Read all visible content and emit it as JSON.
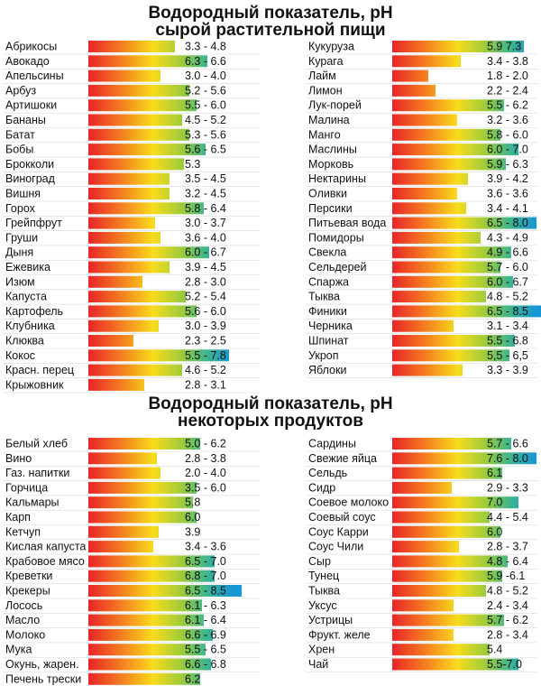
{
  "title1": [
    "Водородный показатель, pH",
    "сырой растительной пищи"
  ],
  "title2": [
    "Водородный показатель, pH",
    "некоторых продуктов"
  ],
  "chart_data": [
    {
      "type": "bar",
      "title": "Водородный показатель, pH сырой растительной пищи",
      "xlim": [
        1,
        8
      ],
      "columns": [
        [
          {
            "label": "Абрикосы",
            "range": [
              3.3,
              4.8
            ],
            "text": "3.3 - 4.8"
          },
          {
            "label": "Авокадо",
            "range": [
              6.3,
              6.6
            ],
            "text": "6.3 - 6.6"
          },
          {
            "label": "Апельсины",
            "range": [
              3.0,
              4.0
            ],
            "text": "3.0 - 4.0"
          },
          {
            "label": "Арбуз",
            "range": [
              5.2,
              5.6
            ],
            "text": "5.2 - 5.6"
          },
          {
            "label": "Артишоки",
            "range": [
              5.5,
              6.0
            ],
            "text": "5.5 - 6.0"
          },
          {
            "label": "Бананы",
            "range": [
              4.5,
              5.2
            ],
            "text": "4.5 - 5.2"
          },
          {
            "label": "Батат",
            "range": [
              5.3,
              5.6
            ],
            "text": "5.3 - 5.6"
          },
          {
            "label": "Бобы",
            "range": [
              5.6,
              6.5
            ],
            "text": "5.6 - 6.5"
          },
          {
            "label": "Брокколи",
            "range": [
              5.3,
              5.3
            ],
            "text": "5.3"
          },
          {
            "label": "Виноград",
            "range": [
              3.5,
              4.5
            ],
            "text": "3.5 - 4.5"
          },
          {
            "label": "Вишня",
            "range": [
              3.2,
              4.5
            ],
            "text": "3.2 - 4.5"
          },
          {
            "label": "Горох",
            "range": [
              5.8,
              6.4
            ],
            "text": "5.8 - 6.4"
          },
          {
            "label": "Грейпфрут",
            "range": [
              3.0,
              3.7
            ],
            "text": "3.0 - 3.7"
          },
          {
            "label": "Груши",
            "range": [
              3.6,
              4.0
            ],
            "text": "3.6 - 4.0"
          },
          {
            "label": "Дыня",
            "range": [
              6.0,
              6.7
            ],
            "text": "6.0 - 6.7"
          },
          {
            "label": "Ежевика",
            "range": [
              3.9,
              4.5
            ],
            "text": "3.9 - 4.5"
          },
          {
            "label": "Изюм",
            "range": [
              2.8,
              3.0
            ],
            "text": "2.8 - 3.0"
          },
          {
            "label": "Капуста",
            "range": [
              5.2,
              5.4
            ],
            "text": "5.2 - 5.4"
          },
          {
            "label": "Картофель",
            "range": [
              5.6,
              6.0
            ],
            "text": "5.6 - 6.0"
          },
          {
            "label": "Клубника",
            "range": [
              3.0,
              3.9
            ],
            "text": "3.0 - 3.9"
          },
          {
            "label": "Клюква",
            "range": [
              2.3,
              2.5
            ],
            "text": "2.3 - 2.5"
          },
          {
            "label": "Кокос",
            "range": [
              5.5,
              7.8
            ],
            "text": "5.5 - 7.8"
          },
          {
            "label": "Красн. перец",
            "range": [
              4.6,
              5.2
            ],
            "text": "4.6 - 5.2"
          },
          {
            "label": "Крыжовник",
            "range": [
              2.8,
              3.1
            ],
            "text": "2.8 - 3.1"
          }
        ],
        [
          {
            "label": "Кукуруза",
            "range": [
              5.9,
              7.3
            ],
            "text": "5.9   7.3"
          },
          {
            "label": "Курага",
            "range": [
              3.4,
              3.8
            ],
            "text": "3.4 - 3.8"
          },
          {
            "label": "Лайм",
            "range": [
              1.8,
              2.0
            ],
            "text": "1.8 - 2.0"
          },
          {
            "label": "Лимон",
            "range": [
              2.2,
              2.4
            ],
            "text": "2.2 - 2.4"
          },
          {
            "label": "Лук-порей",
            "range": [
              5.5,
              6.2
            ],
            "text": "5.5 - 6.2"
          },
          {
            "label": "Малина",
            "range": [
              3.2,
              3.6
            ],
            "text": "3.2 - 3.6"
          },
          {
            "label": "Манго",
            "range": [
              5.8,
              6.0
            ],
            "text": "5.8 - 6.0"
          },
          {
            "label": "Маслины",
            "range": [
              6.0,
              7.0
            ],
            "text": "6.0 - 7.0"
          },
          {
            "label": "Морковь",
            "range": [
              5.9,
              6.3
            ],
            "text": "5.9 - 6.3"
          },
          {
            "label": "Нектарины",
            "range": [
              3.9,
              4.2
            ],
            "text": "3.9 - 4.2"
          },
          {
            "label": "Оливки",
            "range": [
              3.6,
              3.6
            ],
            "text": "3.6 - 3.6"
          },
          {
            "label": "Персики",
            "range": [
              3.4,
              4.1
            ],
            "text": "3.4 - 4.1"
          },
          {
            "label": "Питьевая вода",
            "range": [
              6.5,
              8.0
            ],
            "text": "6.5 - 8.0"
          },
          {
            "label": "Помидоры",
            "range": [
              4.3,
              4.9
            ],
            "text": "4.3 - 4.9"
          },
          {
            "label": "Свекла",
            "range": [
              4.9,
              6.6
            ],
            "text": "4.9 - 6.6"
          },
          {
            "label": "Сельдерей",
            "range": [
              5.7,
              6.0
            ],
            "text": "5.7 - 6.0"
          },
          {
            "label": "Спаржа",
            "range": [
              6.0,
              6.7
            ],
            "text": "6.0 - 6.7"
          },
          {
            "label": "Тыква",
            "range": [
              4.8,
              5.2
            ],
            "text": "4.8 - 5.2"
          },
          {
            "label": "Финики",
            "range": [
              6.5,
              8.5
            ],
            "text": "6.5 - 8.5"
          },
          {
            "label": "Черника",
            "range": [
              3.1,
              3.4
            ],
            "text": "3.1 - 3.4"
          },
          {
            "label": "Шпинат",
            "range": [
              5.5,
              6.8
            ],
            "text": "5.5 - 6.8"
          },
          {
            "label": "Укроп",
            "range": [
              5.5,
              6.5
            ],
            "text": "5,5 - 6,5"
          },
          {
            "label": "Яблоки",
            "range": [
              3.3,
              3.9
            ],
            "text": "3.3 - 3.9"
          }
        ]
      ]
    },
    {
      "type": "bar",
      "title": "Водородный показатель, pH некоторых продуктов",
      "xlim": [
        1,
        8
      ],
      "columns": [
        [
          {
            "label": "Белый хлеб",
            "range": [
              5.0,
              6.2
            ],
            "text": "5.0 - 6.2"
          },
          {
            "label": "Вино",
            "range": [
              2.8,
              3.8
            ],
            "text": "2.8 - 3.8"
          },
          {
            "label": "Газ. напитки",
            "range": [
              2.0,
              4.0
            ],
            "text": "2.0 - 4.0"
          },
          {
            "label": "Горчица",
            "range": [
              3.5,
              6.0
            ],
            "text": "3.5 - 6.0"
          },
          {
            "label": "Кальмары",
            "range": [
              5.8,
              5.8
            ],
            "text": "5.8"
          },
          {
            "label": "Карп",
            "range": [
              6.0,
              6.0
            ],
            "text": "6.0"
          },
          {
            "label": "Кетчуп",
            "range": [
              3.9,
              3.9
            ],
            "text": "3.9"
          },
          {
            "label": "Кислая капуста",
            "range": [
              3.4,
              3.6
            ],
            "text": "3.4 - 3.6"
          },
          {
            "label": "Крабовое мясо",
            "range": [
              6.5,
              7.0
            ],
            "text": "6.5 - 7.0"
          },
          {
            "label": "Креветки",
            "range": [
              6.8,
              7.0
            ],
            "text": "6.8 - 7.0"
          },
          {
            "label": "Крекеры",
            "range": [
              6.5,
              8.5
            ],
            "text": "6.5 - 8.5"
          },
          {
            "label": "Лосось",
            "range": [
              6.1,
              6.3
            ],
            "text": "6.1 - 6.3"
          },
          {
            "label": "Масло",
            "range": [
              6.1,
              6.4
            ],
            "text": "6.1 - 6.4"
          },
          {
            "label": "Молоко",
            "range": [
              6.6,
              6.9
            ],
            "text": "6.6 - 6.9"
          },
          {
            "label": "Мука",
            "range": [
              5.5,
              6.5
            ],
            "text": "5.5 - 6.5"
          },
          {
            "label": "Окунь, жарен.",
            "range": [
              6.6,
              6.8
            ],
            "text": "6.6 - 6.8"
          },
          {
            "label": "Печень трески",
            "range": [
              6.2,
              6.2
            ],
            "text": "6.2"
          }
        ],
        [
          {
            "label": "Сардины",
            "range": [
              5.7,
              6.6
            ],
            "text": "5.7 - 6.6"
          },
          {
            "label": "Свежие яйца",
            "range": [
              7.6,
              8.0
            ],
            "text": "7.6 - 8.0"
          },
          {
            "label": "Сельдь",
            "range": [
              6.1,
              6.1
            ],
            "text": "6.1"
          },
          {
            "label": "Сидр",
            "range": [
              2.9,
              3.3
            ],
            "text": "2.9 - 3.3"
          },
          {
            "label": "Соевое молоко",
            "range": [
              7.0,
              7.0
            ],
            "text": "7.0"
          },
          {
            "label": "Соевый соус",
            "range": [
              4.4,
              5.4
            ],
            "text": "4.4 - 5.4"
          },
          {
            "label": "Соус Карри",
            "range": [
              6.0,
              6.0
            ],
            "text": "6.0"
          },
          {
            "label": "Соус Чили",
            "range": [
              2.8,
              3.7
            ],
            "text": "2.8 - 3.7"
          },
          {
            "label": "Сыр",
            "range": [
              4.8,
              6.4
            ],
            "text": "4.8 - 6.4"
          },
          {
            "label": "Тунец",
            "range": [
              5.9,
              6.1
            ],
            "text": "5.9 -6.1"
          },
          {
            "label": "Тыква",
            "range": [
              4.8,
              5.2
            ],
            "text": "4.8 - 5.2"
          },
          {
            "label": "Уксус",
            "range": [
              2.4,
              3.4
            ],
            "text": "2.4 - 3.4"
          },
          {
            "label": "Устрицы",
            "range": [
              5.7,
              6.2
            ],
            "text": "5.7 - 6.2"
          },
          {
            "label": "Фрукт. желе",
            "range": [
              2.8,
              3.4
            ],
            "text": "2.8 - 3.4"
          },
          {
            "label": "Хрен",
            "range": [
              5.4,
              5.4
            ],
            "text": "5.4"
          },
          {
            "label": "Чай",
            "range": [
              5.5,
              7.0
            ],
            "text": "5.5-7.0"
          }
        ]
      ]
    }
  ]
}
